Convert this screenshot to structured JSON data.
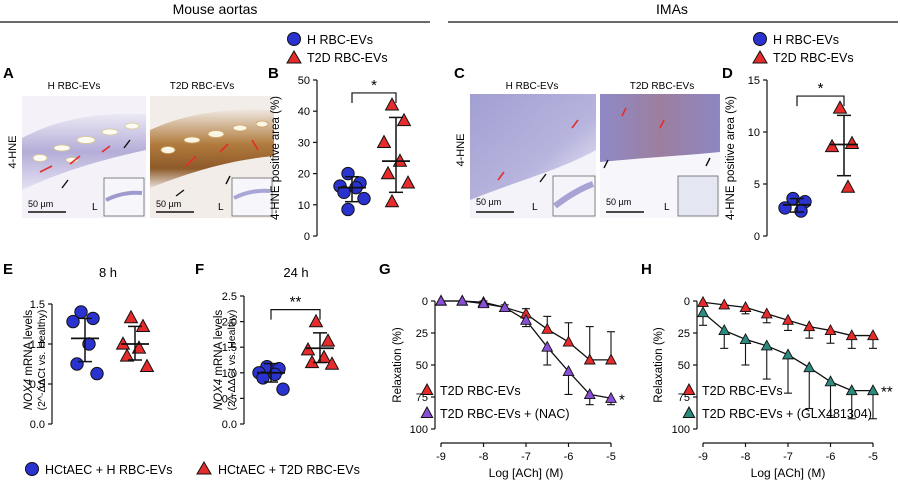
{
  "headers": {
    "mouse": "Mouse aortas",
    "imas": "IMAs"
  },
  "micro": {
    "A": {
      "letter": "A",
      "side": "4-HNE",
      "left_title": "H RBC-EVs",
      "right_title": "T2D RBC-EVs",
      "scale": "50 µm",
      "lumen": "L"
    },
    "C": {
      "letter": "C",
      "side": "4-HNE",
      "left_title": "H RBC-EVs",
      "right_title": "T2D RBC-EVs",
      "scale": "50 µm",
      "lumen": "L"
    }
  },
  "colors": {
    "blue": "#2a33cf",
    "red": "#e52b2b",
    "purple": "#8a4fd6",
    "teal": "#2e8a7f",
    "tissue": "#b8b4da",
    "brown": "#a8682a"
  },
  "chart_data": [
    {
      "id": "B",
      "letter": "B",
      "type": "scatter",
      "ylabel": "4-HNE positive area (%)",
      "ylim": [
        0,
        50
      ],
      "yticks": [
        0,
        10,
        20,
        30,
        40,
        50
      ],
      "significance": "*",
      "legend": [
        "H RBC-EVs",
        "T2D RBC-EVs"
      ],
      "groups": [
        {
          "name": "H RBC-EVs",
          "marker": "circle",
          "color": "#2a33cf",
          "mean": 15.5,
          "sd_low": 11,
          "sd_high": 19,
          "values": [
            20,
            17,
            16,
            15.5,
            14,
            12,
            8.5
          ]
        },
        {
          "name": "T2D RBC-EVs",
          "marker": "triangle",
          "color": "#e52b2b",
          "mean": 24,
          "sd_low": 14,
          "sd_high": 38,
          "values": [
            42,
            37,
            30,
            24,
            20,
            17,
            11
          ]
        }
      ]
    },
    {
      "id": "D",
      "letter": "D",
      "type": "scatter",
      "ylabel": "4-HNE positive area (%)",
      "ylim": [
        0,
        15
      ],
      "yticks": [
        0,
        5,
        10,
        15
      ],
      "significance": "*",
      "legend": [
        "H RBC-EVs",
        "T2D RBC-EVs"
      ],
      "groups": [
        {
          "name": "H RBC-EVs",
          "marker": "circle",
          "color": "#2a33cf",
          "mean": 3.0,
          "sd_low": 2.3,
          "sd_high": 3.6,
          "values": [
            3.6,
            3.3,
            2.7,
            2.4
          ]
        },
        {
          "name": "T2D RBC-EVs",
          "marker": "triangle",
          "color": "#e52b2b",
          "mean": 8.8,
          "sd_low": 5.8,
          "sd_high": 11.6,
          "values": [
            12.3,
            8.9,
            8.6,
            4.7
          ]
        }
      ]
    },
    {
      "id": "E",
      "letter": "E",
      "type": "scatter",
      "title": "8 h",
      "ylabel_gene": "NOX4",
      "ylabel_rest": " mRNA levels",
      "ylabel2": "(2^-ΔΔCt vs. Healthy)",
      "ylim": [
        0,
        1.6
      ],
      "yticks": [
        0.0,
        0.5,
        1.0,
        1.5
      ],
      "groups": [
        {
          "name": "HCtAEC + H RBC-EVs",
          "marker": "circle",
          "color": "#2a33cf",
          "mean": 1.07,
          "sd_low": 0.78,
          "sd_high": 1.32,
          "values": [
            1.4,
            1.32,
            1.28,
            1.0,
            0.75,
            0.63
          ]
        },
        {
          "name": "HCtAEC + T2D RBC-EVs",
          "marker": "triangle",
          "color": "#e52b2b",
          "mean": 1.0,
          "sd_low": 0.8,
          "sd_high": 1.22,
          "values": [
            1.33,
            1.22,
            1.0,
            0.95,
            0.85,
            0.72
          ]
        }
      ]
    },
    {
      "id": "F",
      "letter": "F",
      "type": "scatter",
      "title": "24 h",
      "ylabel_gene": "NOX4",
      "ylabel_rest": " mRNA levels",
      "ylabel2": "(2^-ΔΔCt vs. Healthy)",
      "ylim": [
        0,
        2.5
      ],
      "yticks": [
        0.0,
        0.5,
        1.0,
        1.5,
        2.0,
        2.5
      ],
      "significance": "**",
      "groups": [
        {
          "name": "HCtAEC + H RBC-EVs",
          "marker": "circle",
          "color": "#2a33cf",
          "mean": 1.0,
          "sd_low": 0.82,
          "sd_high": 1.18,
          "values": [
            1.12,
            1.08,
            1.0,
            0.97,
            0.9,
            0.68
          ]
        },
        {
          "name": "HCtAEC + T2D RBC-EVs",
          "marker": "triangle",
          "color": "#e52b2b",
          "mean": 1.48,
          "sd_low": 1.2,
          "sd_high": 1.78,
          "values": [
            2.0,
            1.62,
            1.45,
            1.3,
            1.2,
            1.17
          ]
        }
      ]
    },
    {
      "id": "G",
      "letter": "G",
      "type": "line",
      "xlabel": "Log [ACh] (M)",
      "ylabel": "Relaxation (%)",
      "xlim": [
        -9,
        -5
      ],
      "xticks": [
        -9,
        -8,
        -7,
        -6,
        -5
      ],
      "ylim": [
        0,
        100
      ],
      "yticks": [
        0,
        25,
        50,
        75,
        100
      ],
      "y_inverted": true,
      "x": [
        -9,
        -8.5,
        -8,
        -7.5,
        -7,
        -6.5,
        -6,
        -5.5,
        -5
      ],
      "series": [
        {
          "name": "T2D RBC-EVs",
          "marker": "triangle",
          "color": "#e52b2b",
          "values": [
            0,
            0,
            1,
            5,
            10,
            22,
            32,
            46,
            46
          ],
          "err": [
            0,
            0,
            1,
            2,
            4,
            10,
            15,
            26,
            22
          ]
        },
        {
          "name": "T2D RBC-EVs + (NAC)",
          "marker": "triangle",
          "color": "#8a4fd6",
          "values": [
            0,
            0,
            2,
            5,
            15,
            36,
            55,
            73,
            76
          ],
          "err": [
            0,
            0,
            1,
            2,
            5,
            14,
            18,
            8,
            5
          ]
        }
      ],
      "significance": "*"
    },
    {
      "id": "H",
      "letter": "H",
      "type": "line",
      "xlabel": "Log [ACh] (M)",
      "ylabel": "Relaxation (%)",
      "xlim": [
        -9,
        -5
      ],
      "xticks": [
        -9,
        -8,
        -7,
        -6,
        -5
      ],
      "ylim": [
        0,
        100
      ],
      "yticks": [
        0,
        25,
        50,
        75,
        100
      ],
      "y_inverted": true,
      "x": [
        -9,
        -8.5,
        -8,
        -7.5,
        -7,
        -6.5,
        -6,
        -5.5,
        -5
      ],
      "series": [
        {
          "name": "T2D RBC-EVs",
          "marker": "triangle",
          "color": "#e52b2b",
          "values": [
            1,
            3,
            5,
            10,
            15,
            20,
            23,
            27,
            27
          ],
          "err": [
            3,
            3,
            5,
            7,
            8,
            9,
            10,
            10,
            10
          ]
        },
        {
          "name": "T2D RBC-EVs + (GLX481304)",
          "marker": "triangle",
          "color": "#2e8a7f",
          "values": [
            9,
            23,
            30,
            35,
            42,
            52,
            63,
            70,
            70
          ],
          "err": [
            10,
            14,
            20,
            26,
            30,
            32,
            28,
            22,
            22
          ]
        }
      ],
      "significance": "**"
    }
  ]
}
